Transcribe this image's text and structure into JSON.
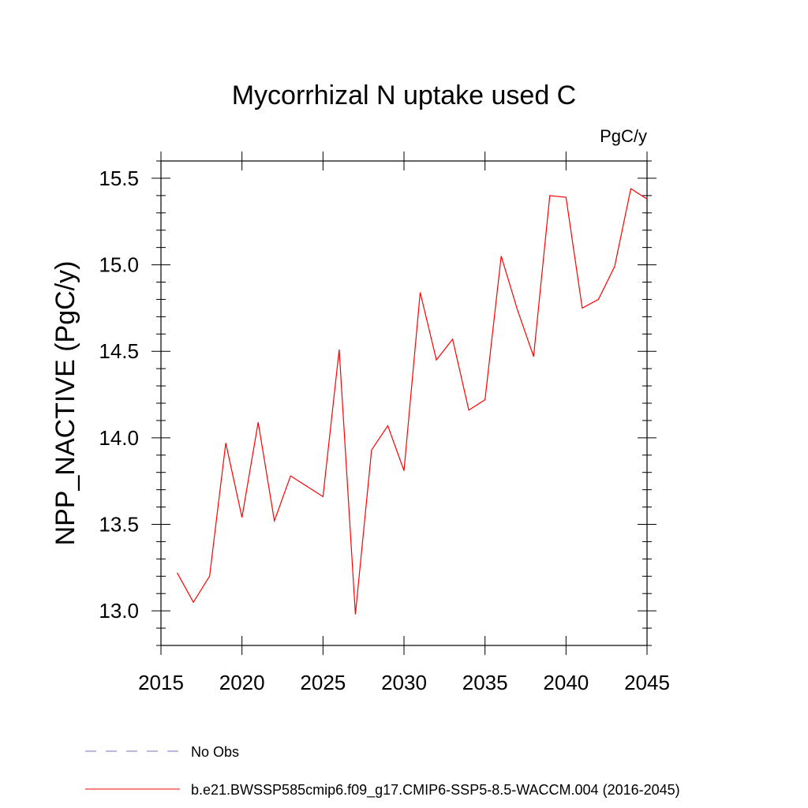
{
  "chart_data": {
    "type": "line",
    "title": "Mycorrhizal N uptake used C",
    "units_label": "PgC/y",
    "ylabel": "NPP_NACTIVE  (PgC/y)",
    "xlabel": "",
    "xlim": [
      2015,
      2045
    ],
    "ylim": [
      12.8,
      15.6
    ],
    "x_ticks": [
      2015,
      2020,
      2025,
      2030,
      2035,
      2040,
      2045
    ],
    "y_ticks": [
      13.0,
      13.5,
      14.0,
      14.5,
      15.0,
      15.5
    ],
    "y_tick_labels": [
      "13.0",
      "13.5",
      "14.0",
      "14.5",
      "15.0",
      "15.5"
    ],
    "series": [
      {
        "name": "b.e21.BWSSP585cmip6.f09_g17.CMIP6-SSP5-8.5-WACCM.004 (2016-2045)",
        "color": "#ff0000",
        "x": [
          2016,
          2017,
          2018,
          2019,
          2020,
          2021,
          2022,
          2023,
          2024,
          2025,
          2026,
          2027,
          2028,
          2029,
          2030,
          2031,
          2032,
          2033,
          2034,
          2035,
          2036,
          2037,
          2038,
          2039,
          2040,
          2041,
          2042,
          2043,
          2044,
          2045
        ],
        "values": [
          13.22,
          13.05,
          13.2,
          13.97,
          13.54,
          14.09,
          13.52,
          13.78,
          13.72,
          13.66,
          14.51,
          12.98,
          13.93,
          14.07,
          13.81,
          14.84,
          14.45,
          14.57,
          14.16,
          14.22,
          15.05,
          14.74,
          14.47,
          15.4,
          15.39,
          14.75,
          14.8,
          14.99,
          15.44,
          15.38
        ]
      }
    ],
    "legend": [
      {
        "label": "No Obs",
        "style": "dashed",
        "color": "#7b6fc4"
      },
      {
        "label": "b.e21.BWSSP585cmip6.f09_g17.CMIP6-SSP5-8.5-WACCM.004 (2016-2045)",
        "style": "solid",
        "color": "#ff0000"
      }
    ],
    "legend_position": "bottom",
    "grid": false
  }
}
